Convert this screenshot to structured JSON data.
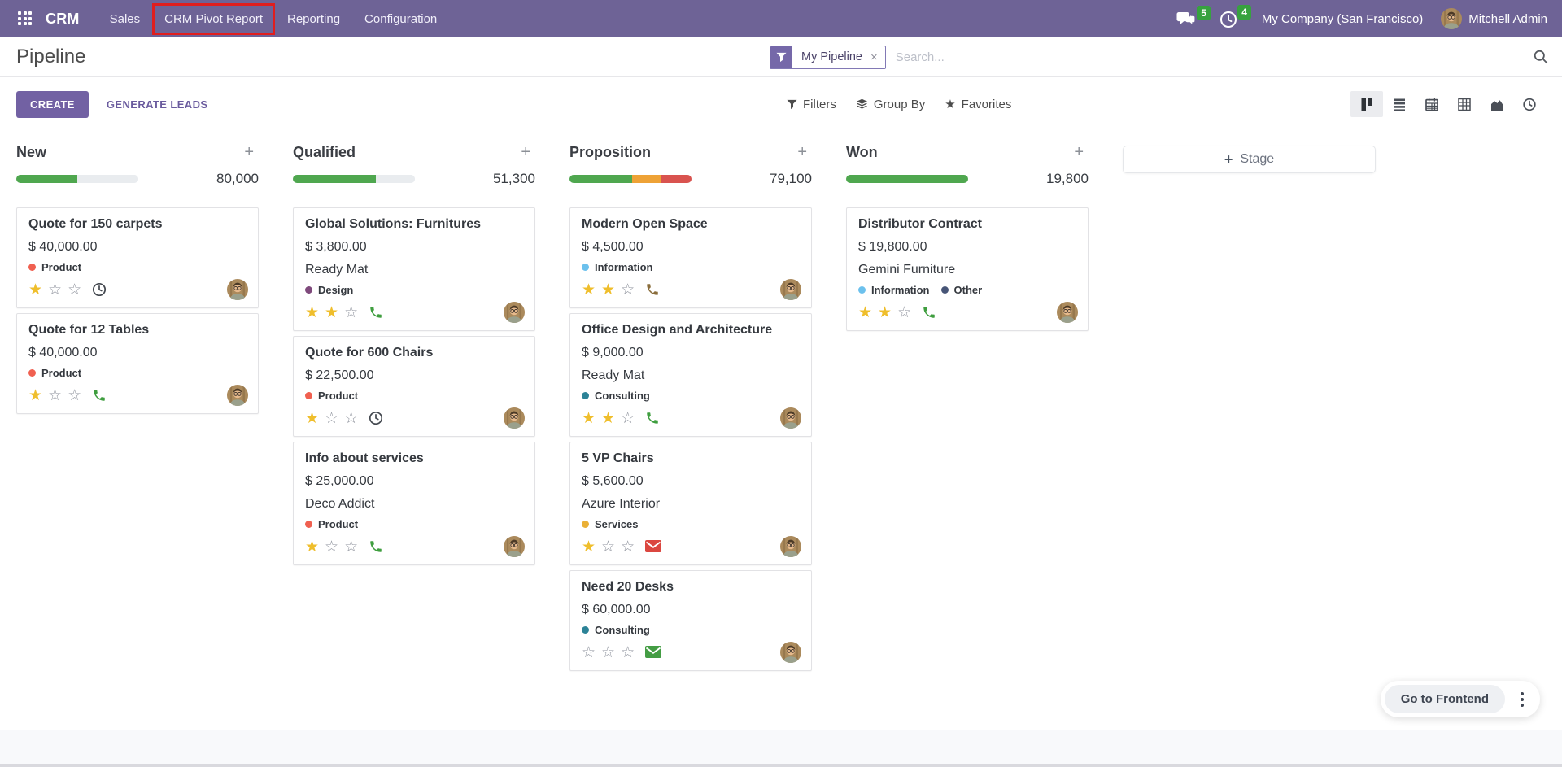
{
  "navbar": {
    "app_name": "CRM",
    "menu_items": [
      {
        "label": "Sales",
        "highlighted": false
      },
      {
        "label": "CRM Pivot Report",
        "highlighted": true
      },
      {
        "label": "Reporting",
        "highlighted": false
      },
      {
        "label": "Configuration",
        "highlighted": false
      }
    ],
    "messages_badge": "5",
    "activities_badge": "4",
    "company": "My Company (San Francisco)",
    "user": "Mitchell Admin",
    "colors": {
      "background": "#6e6396",
      "badge_green": "#37a23f",
      "highlight_box_red": "#e01e1e"
    }
  },
  "control_panel": {
    "page_title": "Pipeline",
    "create_label": "CREATE",
    "generate_leads_label": "GENERATE LEADS",
    "search": {
      "facet_label": "My Pipeline",
      "facet_remove": "×",
      "placeholder": "Search..."
    },
    "toolbar": {
      "filters": "Filters",
      "group_by": "Group By",
      "favorites": "Favorites"
    },
    "view_switcher": [
      "kanban-view-icon",
      "list-view-icon",
      "calendar-view-icon",
      "pivot-view-icon",
      "graph-view-icon",
      "activity-view-icon"
    ],
    "active_view": "kanban-view-icon",
    "accent_color": "#7261a3"
  },
  "kanban": {
    "add_stage_label": "Stage",
    "column_add_icon": "plus-icon",
    "progress_colors": {
      "green": "#4fa74f",
      "orange": "#eea236",
      "red": "#d9534f",
      "empty": "#e9ecef"
    },
    "columns": [
      {
        "name": "New",
        "total": "80,000",
        "progress": [
          {
            "color": "#4fa74f",
            "pct": 50
          },
          {
            "color": "#e9ecef",
            "pct": 50
          }
        ],
        "cards": [
          {
            "title": "Quote for 150 carpets",
            "amount": "$ 40,000.00",
            "company": "",
            "tags": [
              {
                "label": "Product",
                "color": "#f06050"
              }
            ],
            "stars": 1,
            "activity": {
              "icon": "clock-icon",
              "color": "#43484f"
            }
          },
          {
            "title": "Quote for 12 Tables",
            "amount": "$ 40,000.00",
            "company": "",
            "tags": [
              {
                "label": "Product",
                "color": "#f06050"
              }
            ],
            "stars": 1,
            "activity": {
              "icon": "phone-icon",
              "color": "#3f9e3f"
            }
          }
        ]
      },
      {
        "name": "Qualified",
        "total": "51,300",
        "progress": [
          {
            "color": "#4fa74f",
            "pct": 68
          },
          {
            "color": "#e9ecef",
            "pct": 32
          }
        ],
        "cards": [
          {
            "title": "Global Solutions: Furnitures",
            "amount": "$ 3,800.00",
            "company": "Ready Mat",
            "tags": [
              {
                "label": "Design",
                "color": "#7f4a7c"
              }
            ],
            "stars": 2,
            "activity": {
              "icon": "phone-icon",
              "color": "#3f9e3f"
            }
          },
          {
            "title": "Quote for 600 Chairs",
            "amount": "$ 22,500.00",
            "company": "",
            "tags": [
              {
                "label": "Product",
                "color": "#f06050"
              }
            ],
            "stars": 1,
            "activity": {
              "icon": "clock-icon",
              "color": "#43484f"
            }
          },
          {
            "title": "Info about services",
            "amount": "$ 25,000.00",
            "company": "Deco Addict",
            "tags": [
              {
                "label": "Product",
                "color": "#f06050"
              }
            ],
            "stars": 1,
            "activity": {
              "icon": "phone-icon",
              "color": "#3f9e3f"
            }
          }
        ]
      },
      {
        "name": "Proposition",
        "total": "79,100",
        "progress": [
          {
            "color": "#4fa74f",
            "pct": 51
          },
          {
            "color": "#eea236",
            "pct": 24
          },
          {
            "color": "#d9534f",
            "pct": 25
          }
        ],
        "cards": [
          {
            "title": "Modern Open Space",
            "amount": "$ 4,500.00",
            "company": "",
            "tags": [
              {
                "label": "Information",
                "color": "#6cc1ed"
              }
            ],
            "stars": 2,
            "activity": {
              "icon": "phone-icon",
              "color": "#8a6d3b"
            }
          },
          {
            "title": "Office Design and Architecture",
            "amount": "$ 9,000.00",
            "company": "Ready Mat",
            "tags": [
              {
                "label": "Consulting",
                "color": "#2c8397"
              }
            ],
            "stars": 2,
            "activity": {
              "icon": "phone-icon",
              "color": "#3f9e3f"
            }
          },
          {
            "title": "5 VP Chairs",
            "amount": "$ 5,600.00",
            "company": "Azure Interior",
            "tags": [
              {
                "label": "Services",
                "color": "#eab036"
              }
            ],
            "stars": 1,
            "activity": {
              "icon": "envelope-icon",
              "color": "#db4740"
            }
          },
          {
            "title": "Need 20 Desks",
            "amount": "$ 60,000.00",
            "company": "",
            "tags": [
              {
                "label": "Consulting",
                "color": "#2c8397"
              }
            ],
            "stars": 0,
            "activity": {
              "icon": "envelope-icon",
              "color": "#449d44"
            }
          }
        ]
      },
      {
        "name": "Won",
        "total": "19,800",
        "progress": [
          {
            "color": "#4fa74f",
            "pct": 100
          }
        ],
        "cards": [
          {
            "title": "Distributor Contract",
            "amount": "$ 19,800.00",
            "company": "Gemini Furniture",
            "tags": [
              {
                "label": "Information",
                "color": "#6cc1ed"
              },
              {
                "label": "Other",
                "color": "#475577"
              }
            ],
            "stars": 2,
            "activity": {
              "icon": "phone-icon",
              "color": "#3f9e3f"
            }
          }
        ]
      }
    ]
  },
  "footer": {
    "frontend_button": "Go to Frontend"
  },
  "icons": {
    "navbar": [
      "apps-grid-icon",
      "chat-bubbles-icon",
      "clock-icon"
    ],
    "search": [
      "funnel-icon",
      "magnifier-icon",
      "close-icon"
    ],
    "toolbar": [
      "funnel-icon",
      "layers-icon",
      "star-icon"
    ],
    "card": [
      "star-icon",
      "phone-icon",
      "envelope-icon",
      "clock-icon",
      "avatar"
    ]
  }
}
